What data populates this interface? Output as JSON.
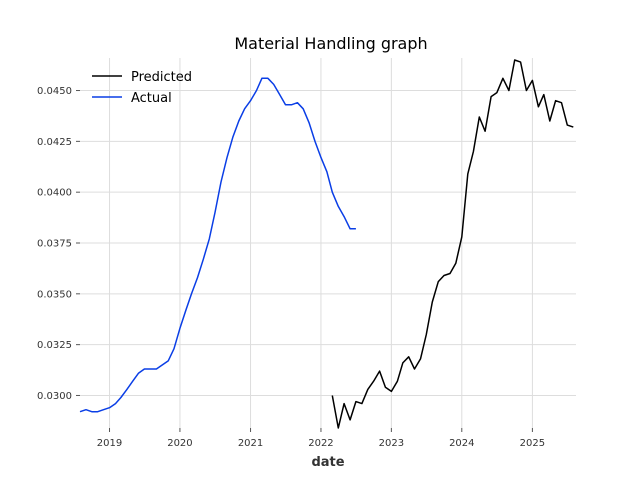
{
  "chart_data": {
    "type": "line",
    "title": "Material Handling graph",
    "xlabel": "date",
    "ylabel": "",
    "xlim": [
      "2018-08-01",
      "2025-08-15"
    ],
    "ylim": [
      0.0284,
      0.0466
    ],
    "grid": true,
    "legend_position": "top-left",
    "x_ticks": [
      "2019",
      "2020",
      "2021",
      "2022",
      "2023",
      "2024",
      "2025"
    ],
    "y_ticks": [
      "0.0300",
      "0.0325",
      "0.0350",
      "0.0375",
      "0.0400",
      "0.0425",
      "0.0450"
    ],
    "series": [
      {
        "name": "Predicted",
        "color": "#000000",
        "x": [
          "2022-03-01",
          "2022-04-01",
          "2022-05-01",
          "2022-06-01",
          "2022-07-01",
          "2022-08-01",
          "2022-09-01",
          "2022-10-01",
          "2022-11-01",
          "2022-12-01",
          "2023-01-01",
          "2023-02-01",
          "2023-03-01",
          "2023-04-01",
          "2023-05-01",
          "2023-06-01",
          "2023-07-01",
          "2023-08-01",
          "2023-09-01",
          "2023-10-01",
          "2023-11-01",
          "2023-12-01",
          "2024-01-01",
          "2024-02-01",
          "2024-03-01",
          "2024-04-01",
          "2024-05-01",
          "2024-06-01",
          "2024-07-01",
          "2024-08-01",
          "2024-09-01",
          "2024-10-01",
          "2024-11-01",
          "2024-12-01",
          "2025-01-01",
          "2025-02-01",
          "2025-03-01",
          "2025-04-01",
          "2025-05-01",
          "2025-06-01",
          "2025-07-01",
          "2025-08-01"
        ],
        "y": [
          0.03,
          0.0284,
          0.0296,
          0.0288,
          0.0297,
          0.0296,
          0.0303,
          0.0307,
          0.0312,
          0.0304,
          0.0302,
          0.0307,
          0.0316,
          0.0319,
          0.0313,
          0.0318,
          0.033,
          0.0346,
          0.0356,
          0.0359,
          0.036,
          0.0365,
          0.0378,
          0.0409,
          0.042,
          0.0437,
          0.043,
          0.0447,
          0.0449,
          0.0456,
          0.045,
          0.0465,
          0.0464,
          0.045,
          0.0455,
          0.0442,
          0.0448,
          0.0435,
          0.0445,
          0.0444,
          0.0433,
          0.0432
        ]
      },
      {
        "name": "Actual",
        "color": "#0a3ee6",
        "x": [
          "2018-08-01",
          "2018-09-01",
          "2018-10-01",
          "2018-11-01",
          "2018-12-01",
          "2019-01-01",
          "2019-02-01",
          "2019-03-01",
          "2019-04-01",
          "2019-05-01",
          "2019-06-01",
          "2019-07-01",
          "2019-08-01",
          "2019-09-01",
          "2019-10-01",
          "2019-11-01",
          "2019-12-01",
          "2020-01-01",
          "2020-02-01",
          "2020-03-01",
          "2020-04-01",
          "2020-05-01",
          "2020-06-01",
          "2020-07-01",
          "2020-08-01",
          "2020-09-01",
          "2020-10-01",
          "2020-11-01",
          "2020-12-01",
          "2021-01-01",
          "2021-02-01",
          "2021-03-01",
          "2021-04-01",
          "2021-05-01",
          "2021-06-01",
          "2021-07-01",
          "2021-08-01",
          "2021-09-01",
          "2021-10-01",
          "2021-11-01",
          "2021-12-01",
          "2022-01-01",
          "2022-02-01",
          "2022-03-01",
          "2022-04-01",
          "2022-05-01",
          "2022-06-01",
          "2022-07-01"
        ],
        "y": [
          0.0292,
          0.0293,
          0.0292,
          0.0292,
          0.0293,
          0.0294,
          0.0296,
          0.0299,
          0.0303,
          0.0307,
          0.0311,
          0.0313,
          0.0313,
          0.0313,
          0.0315,
          0.0317,
          0.0323,
          0.0333,
          0.0342,
          0.035,
          0.0358,
          0.0367,
          0.0377,
          0.039,
          0.0405,
          0.0417,
          0.0427,
          0.0435,
          0.0441,
          0.0445,
          0.045,
          0.0456,
          0.0456,
          0.0453,
          0.0448,
          0.0443,
          0.0443,
          0.0444,
          0.0441,
          0.0434,
          0.0425,
          0.0417,
          0.041,
          0.04,
          0.0393,
          0.0388,
          0.0382,
          0.0382
        ]
      }
    ]
  }
}
